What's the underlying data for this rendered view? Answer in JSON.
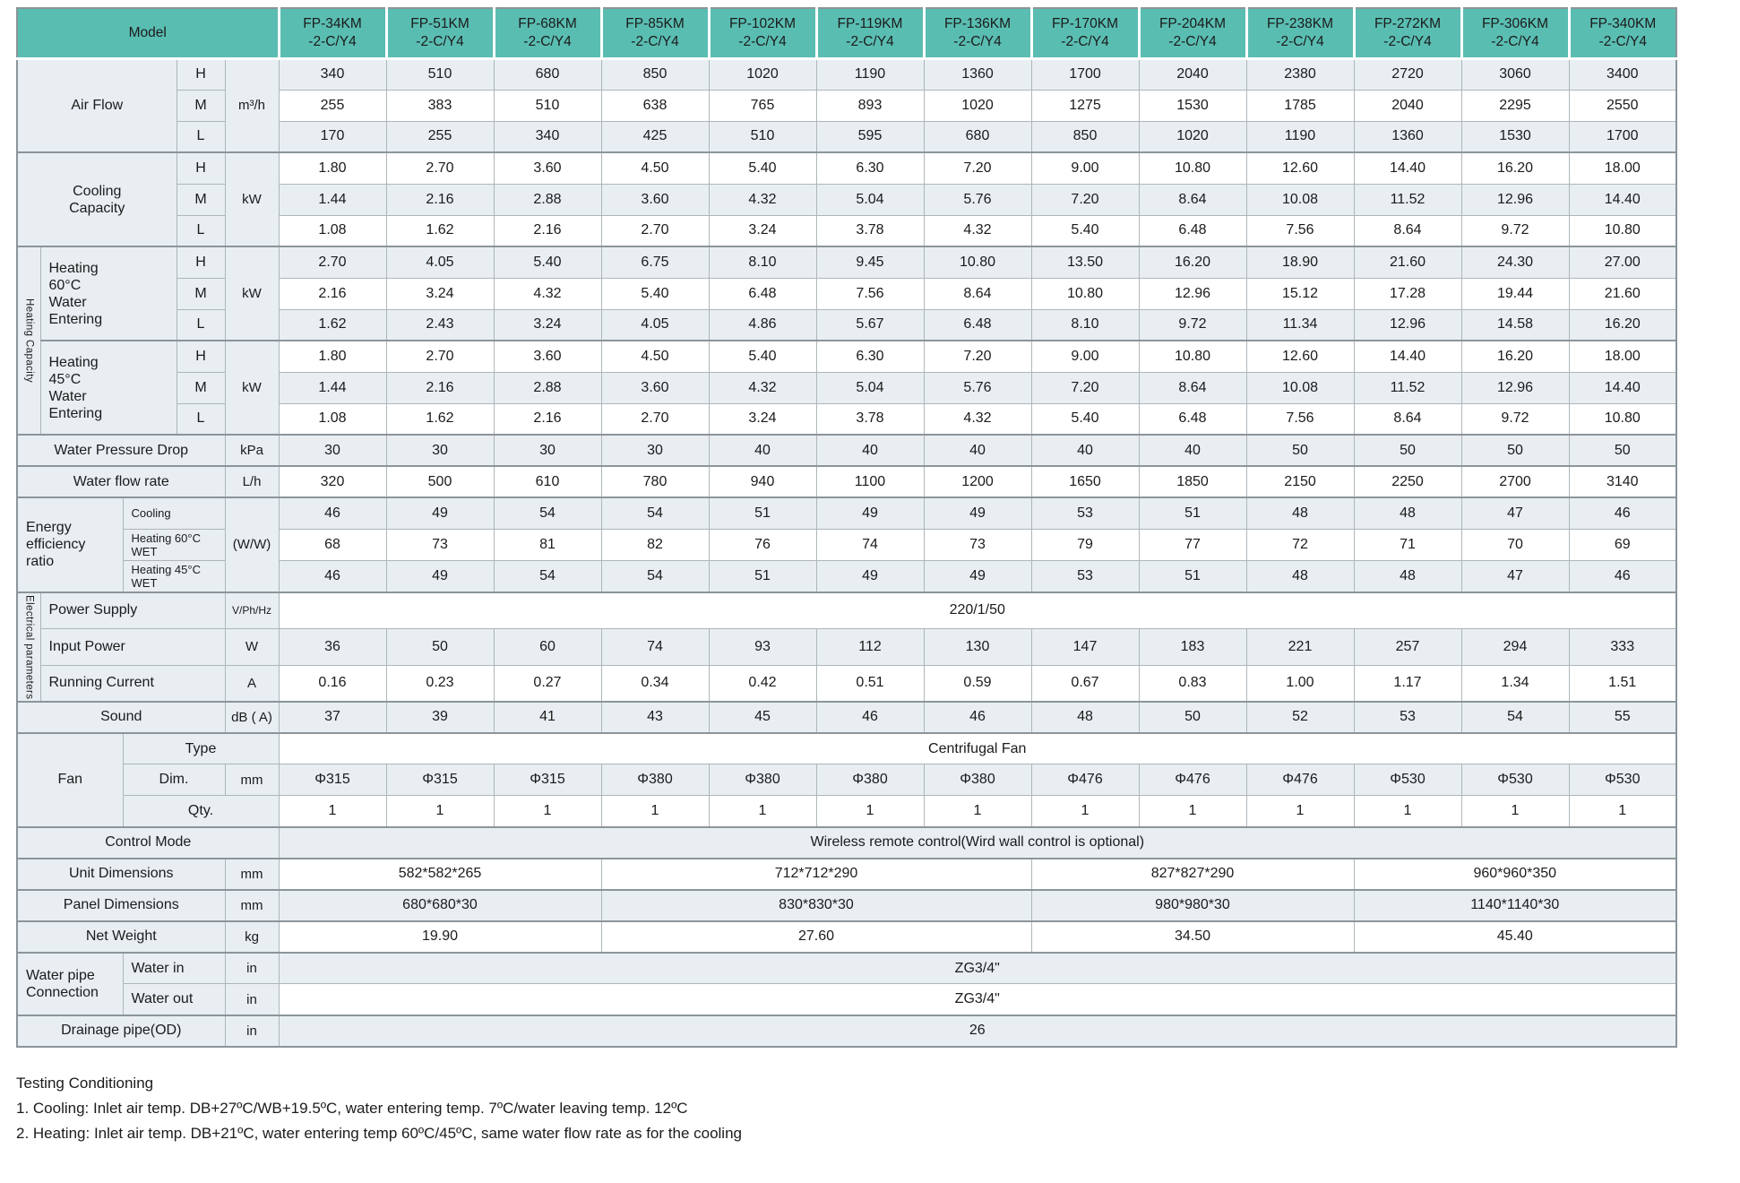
{
  "meta": {
    "title": "Fan coil unit specification table"
  },
  "colors": {
    "header_teal": "#5abdb2",
    "row_light": "#e8eef2",
    "row_white": "#ffffff",
    "border": "#aeb6ba",
    "border_dark": "#8b959a",
    "text": "#1b1b1b"
  },
  "header": {
    "model_label": "Model",
    "models": [
      {
        "l1": "FP-34KM",
        "l2": "-2-C/Y4"
      },
      {
        "l1": "FP-51KM",
        "l2": "-2-C/Y4"
      },
      {
        "l1": "FP-68KM",
        "l2": "-2-C/Y4"
      },
      {
        "l1": "FP-85KM",
        "l2": "-2-C/Y4"
      },
      {
        "l1": "FP-102KM",
        "l2": "-2-C/Y4"
      },
      {
        "l1": "FP-119KM",
        "l2": "-2-C/Y4"
      },
      {
        "l1": "FP-136KM",
        "l2": "-2-C/Y4"
      },
      {
        "l1": "FP-170KM",
        "l2": "-2-C/Y4"
      },
      {
        "l1": "FP-204KM",
        "l2": "-2-C/Y4"
      },
      {
        "l1": "FP-238KM",
        "l2": "-2-C/Y4"
      },
      {
        "l1": "FP-272KM",
        "l2": "-2-C/Y4"
      },
      {
        "l1": "FP-306KM",
        "l2": "-2-C/Y4"
      },
      {
        "l1": "FP-340KM",
        "l2": "-2-C/Y4"
      }
    ]
  },
  "rows": [
    {
      "n": "air-flow-h",
      "shade": "lt",
      "sec": true,
      "labels": [
        {
          "t": "Air Flow",
          "cs": 3,
          "rs": 3,
          "cls": "lab"
        },
        {
          "t": "H",
          "cls": "hml"
        },
        {
          "t": "m³/h",
          "rs": 3,
          "cls": "unit"
        }
      ],
      "values": [
        "340",
        "510",
        "680",
        "850",
        "1020",
        "1190",
        "1360",
        "1700",
        "2040",
        "2380",
        "2720",
        "3060",
        "3400"
      ]
    },
    {
      "n": "air-flow-m",
      "shade": "wh",
      "labels": [
        {
          "t": "M",
          "cls": "hml"
        }
      ],
      "values": [
        "255",
        "383",
        "510",
        "638",
        "765",
        "893",
        "1020",
        "1275",
        "1530",
        "1785",
        "2040",
        "2295",
        "2550"
      ]
    },
    {
      "n": "air-flow-l",
      "shade": "lt",
      "labels": [
        {
          "t": "L",
          "cls": "hml"
        }
      ],
      "values": [
        "170",
        "255",
        "340",
        "425",
        "510",
        "595",
        "680",
        "850",
        "1020",
        "1190",
        "1360",
        "1530",
        "1700"
      ]
    },
    {
      "n": "cooling-capacity-h",
      "shade": "wh",
      "sec": true,
      "labels": [
        {
          "t": "Cooling\nCapacity",
          "cs": 3,
          "rs": 3,
          "cls": "lab pre"
        },
        {
          "t": "H",
          "cls": "hml"
        },
        {
          "t": "kW",
          "rs": 3,
          "cls": "unit"
        }
      ],
      "values": [
        "1.80",
        "2.70",
        "3.60",
        "4.50",
        "5.40",
        "6.30",
        "7.20",
        "9.00",
        "10.80",
        "12.60",
        "14.40",
        "16.20",
        "18.00"
      ]
    },
    {
      "n": "cooling-capacity-m",
      "shade": "lt",
      "labels": [
        {
          "t": "M",
          "cls": "hml"
        }
      ],
      "values": [
        "1.44",
        "2.16",
        "2.88",
        "3.60",
        "4.32",
        "5.04",
        "5.76",
        "7.20",
        "8.64",
        "10.08",
        "11.52",
        "12.96",
        "14.40"
      ]
    },
    {
      "n": "cooling-capacity-l",
      "shade": "wh",
      "labels": [
        {
          "t": "L",
          "cls": "hml"
        }
      ],
      "values": [
        "1.08",
        "1.62",
        "2.16",
        "2.70",
        "3.24",
        "3.78",
        "4.32",
        "5.40",
        "6.48",
        "7.56",
        "8.64",
        "9.72",
        "10.80"
      ]
    },
    {
      "n": "heating-60-h",
      "shade": "lt",
      "sec": true,
      "labels": [
        {
          "t": "Heating Capacity",
          "rs": 6,
          "cls": "vert"
        },
        {
          "t": "Heating\n60°C\nWater\nEntering",
          "cs": 2,
          "rs": 3,
          "cls": "lab left pre"
        },
        {
          "t": "H",
          "cls": "hml"
        },
        {
          "t": "kW",
          "rs": 3,
          "cls": "unit"
        }
      ],
      "values": [
        "2.70",
        "4.05",
        "5.40",
        "6.75",
        "8.10",
        "9.45",
        "10.80",
        "13.50",
        "16.20",
        "18.90",
        "21.60",
        "24.30",
        "27.00"
      ]
    },
    {
      "n": "heating-60-m",
      "shade": "wh",
      "labels": [
        {
          "t": "M",
          "cls": "hml"
        }
      ],
      "values": [
        "2.16",
        "3.24",
        "4.32",
        "5.40",
        "6.48",
        "7.56",
        "8.64",
        "10.80",
        "12.96",
        "15.12",
        "17.28",
        "19.44",
        "21.60"
      ]
    },
    {
      "n": "heating-60-l",
      "shade": "lt",
      "labels": [
        {
          "t": "L",
          "cls": "hml"
        }
      ],
      "values": [
        "1.62",
        "2.43",
        "3.24",
        "4.05",
        "4.86",
        "5.67",
        "6.48",
        "8.10",
        "9.72",
        "11.34",
        "12.96",
        "14.58",
        "16.20"
      ]
    },
    {
      "n": "heating-45-h",
      "shade": "wh",
      "sec": true,
      "labels": [
        {
          "t": "Heating\n45°C\nWater\nEntering",
          "cs": 2,
          "rs": 3,
          "cls": "lab left pre"
        },
        {
          "t": "H",
          "cls": "hml"
        },
        {
          "t": "kW",
          "rs": 3,
          "cls": "unit"
        }
      ],
      "values": [
        "1.80",
        "2.70",
        "3.60",
        "4.50",
        "5.40",
        "6.30",
        "7.20",
        "9.00",
        "10.80",
        "12.60",
        "14.40",
        "16.20",
        "18.00"
      ]
    },
    {
      "n": "heating-45-m",
      "shade": "lt",
      "labels": [
        {
          "t": "M",
          "cls": "hml"
        }
      ],
      "values": [
        "1.44",
        "2.16",
        "2.88",
        "3.60",
        "4.32",
        "5.04",
        "5.76",
        "7.20",
        "8.64",
        "10.08",
        "11.52",
        "12.96",
        "14.40"
      ]
    },
    {
      "n": "heating-45-l",
      "shade": "wh",
      "labels": [
        {
          "t": "L",
          "cls": "hml"
        }
      ],
      "values": [
        "1.08",
        "1.62",
        "2.16",
        "2.70",
        "3.24",
        "3.78",
        "4.32",
        "5.40",
        "6.48",
        "7.56",
        "8.64",
        "9.72",
        "10.80"
      ]
    },
    {
      "n": "water-pressure-drop",
      "shade": "lt",
      "sec": true,
      "labels": [
        {
          "t": "Water Pressure Drop",
          "cs": 4,
          "cls": "lab"
        },
        {
          "t": "kPa",
          "cls": "unit"
        }
      ],
      "values": [
        "30",
        "30",
        "30",
        "30",
        "40",
        "40",
        "40",
        "40",
        "40",
        "50",
        "50",
        "50",
        "50"
      ]
    },
    {
      "n": "water-flow-rate",
      "shade": "wh",
      "sec": true,
      "labels": [
        {
          "t": "Water flow rate",
          "cs": 4,
          "cls": "lab"
        },
        {
          "t": "L/h",
          "cls": "unit"
        }
      ],
      "values": [
        "320",
        "500",
        "610",
        "780",
        "940",
        "1100",
        "1200",
        "1650",
        "1850",
        "2150",
        "2250",
        "2700",
        "3140"
      ]
    },
    {
      "n": "eer-cooling",
      "shade": "lt",
      "sec": true,
      "labels": [
        {
          "t": "Energy\nefficiency\nratio",
          "cs": 2,
          "rs": 3,
          "cls": "lab left pre"
        },
        {
          "t": "Cooling",
          "cs": 2,
          "cls": "lab left small"
        },
        {
          "t": "(W/W)",
          "rs": 3,
          "cls": "unit"
        }
      ],
      "values": [
        "46",
        "49",
        "54",
        "54",
        "51",
        "49",
        "49",
        "53",
        "51",
        "48",
        "48",
        "47",
        "46"
      ]
    },
    {
      "n": "eer-heating-60",
      "shade": "wh",
      "labels": [
        {
          "t": "Heating 60°C WET",
          "cs": 2,
          "cls": "lab left small"
        }
      ],
      "values": [
        "68",
        "73",
        "81",
        "82",
        "76",
        "74",
        "73",
        "79",
        "77",
        "72",
        "71",
        "70",
        "69"
      ]
    },
    {
      "n": "eer-heating-45",
      "shade": "lt",
      "labels": [
        {
          "t": "Heating 45°C WET",
          "cs": 2,
          "cls": "lab left small"
        }
      ],
      "values": [
        "46",
        "49",
        "54",
        "54",
        "51",
        "49",
        "49",
        "53",
        "51",
        "48",
        "48",
        "47",
        "46"
      ]
    },
    {
      "n": "power-supply",
      "shade": "wh",
      "sec": true,
      "labels": [
        {
          "t": "Electrical parameters",
          "rs": 3,
          "cls": "vert"
        },
        {
          "t": "Power Supply",
          "cs": 3,
          "cls": "lab left"
        },
        {
          "t": "V/Ph/Hz",
          "cls": "unit small"
        }
      ],
      "span": "220/1/50"
    },
    {
      "n": "input-power",
      "shade": "lt",
      "labels": [
        {
          "t": "Input Power",
          "cs": 3,
          "cls": "lab left"
        },
        {
          "t": "W",
          "cls": "unit"
        }
      ],
      "values": [
        "36",
        "50",
        "60",
        "74",
        "93",
        "112",
        "130",
        "147",
        "183",
        "221",
        "257",
        "294",
        "333"
      ]
    },
    {
      "n": "running-current",
      "shade": "wh",
      "labels": [
        {
          "t": "Running Current",
          "cs": 3,
          "cls": "lab left"
        },
        {
          "t": "A",
          "cls": "unit"
        }
      ],
      "values": [
        "0.16",
        "0.23",
        "0.27",
        "0.34",
        "0.42",
        "0.51",
        "0.59",
        "0.67",
        "0.83",
        "1.00",
        "1.17",
        "1.34",
        "1.51"
      ]
    },
    {
      "n": "sound",
      "shade": "lt",
      "sec": true,
      "labels": [
        {
          "t": "Sound",
          "cs": 4,
          "cls": "lab"
        },
        {
          "t": "dB ( A)",
          "cls": "unit"
        }
      ],
      "values": [
        "37",
        "39",
        "41",
        "43",
        "45",
        "46",
        "46",
        "48",
        "50",
        "52",
        "53",
        "54",
        "55"
      ]
    },
    {
      "n": "fan-type",
      "shade": "wh",
      "sec": true,
      "labels": [
        {
          "t": "Fan",
          "cs": 2,
          "rs": 3,
          "cls": "lab"
        },
        {
          "t": "Type",
          "cs": 3,
          "cls": "lab"
        }
      ],
      "span": "Centrifugal Fan"
    },
    {
      "n": "fan-dim",
      "shade": "lt",
      "labels": [
        {
          "t": "Dim.",
          "cs": 2,
          "cls": "lab"
        },
        {
          "t": "mm",
          "cls": "unit"
        }
      ],
      "values": [
        "Φ315",
        "Φ315",
        "Φ315",
        "Φ380",
        "Φ380",
        "Φ380",
        "Φ380",
        "Φ476",
        "Φ476",
        "Φ476",
        "Φ530",
        "Φ530",
        "Φ530"
      ]
    },
    {
      "n": "fan-qty",
      "shade": "wh",
      "labels": [
        {
          "t": "Qty.",
          "cs": 3,
          "cls": "lab"
        }
      ],
      "values": [
        "1",
        "1",
        "1",
        "1",
        "1",
        "1",
        "1",
        "1",
        "1",
        "1",
        "1",
        "1",
        "1"
      ]
    },
    {
      "n": "control-mode",
      "shade": "lt",
      "sec": true,
      "labels": [
        {
          "t": "Control Mode",
          "cs": 5,
          "cls": "lab"
        }
      ],
      "span": "Wireless remote control(Wird wall control is optional)"
    },
    {
      "n": "unit-dimensions",
      "shade": "wh",
      "sec": true,
      "labels": [
        {
          "t": "Unit Dimensions",
          "cs": 4,
          "cls": "lab"
        },
        {
          "t": "mm",
          "cls": "unit"
        }
      ],
      "groups": [
        {
          "t": "582*582*265",
          "s": 3
        },
        {
          "t": "712*712*290",
          "s": 4
        },
        {
          "t": "827*827*290",
          "s": 3
        },
        {
          "t": "960*960*350",
          "s": 3
        }
      ]
    },
    {
      "n": "panel-dimensions",
      "shade": "lt",
      "sec": true,
      "labels": [
        {
          "t": "Panel Dimensions",
          "cs": 4,
          "cls": "lab"
        },
        {
          "t": "mm",
          "cls": "unit"
        }
      ],
      "groups": [
        {
          "t": "680*680*30",
          "s": 3
        },
        {
          "t": "830*830*30",
          "s": 4
        },
        {
          "t": "980*980*30",
          "s": 3
        },
        {
          "t": "1140*1140*30",
          "s": 3
        }
      ]
    },
    {
      "n": "net-weight",
      "shade": "wh",
      "sec": true,
      "labels": [
        {
          "t": "Net Weight",
          "cs": 4,
          "cls": "lab"
        },
        {
          "t": "kg",
          "cls": "unit"
        }
      ],
      "groups": [
        {
          "t": "19.90",
          "s": 3
        },
        {
          "t": "27.60",
          "s": 4
        },
        {
          "t": "34.50",
          "s": 3
        },
        {
          "t": "45.40",
          "s": 3
        }
      ]
    },
    {
      "n": "water-in",
      "shade": "lt",
      "sec": true,
      "labels": [
        {
          "t": "Water pipe\nConnection",
          "cs": 2,
          "rs": 2,
          "cls": "lab left pre"
        },
        {
          "t": "Water in",
          "cs": 2,
          "cls": "lab left"
        },
        {
          "t": "in",
          "cls": "unit"
        }
      ],
      "span": "ZG3/4\""
    },
    {
      "n": "water-out",
      "shade": "wh",
      "labels": [
        {
          "t": "Water out",
          "cs": 2,
          "cls": "lab left"
        },
        {
          "t": "in",
          "cls": "unit"
        }
      ],
      "span": "ZG3/4\""
    },
    {
      "n": "drainage-pipe",
      "shade": "lt",
      "sec": true,
      "labels": [
        {
          "t": "Drainage pipe(OD)",
          "cs": 4,
          "cls": "lab"
        },
        {
          "t": "in",
          "cls": "unit"
        }
      ],
      "span": "26"
    }
  ],
  "notes": {
    "title": "Testing Conditioning",
    "items": [
      "1. Cooling: Inlet air temp. DB+27ºC/WB+19.5ºC, water entering temp. 7ºC/water leaving temp. 12ºC",
      "2. Heating: Inlet air temp. DB+21ºC, water entering temp 60ºC/45ºC, same water flow rate as for the cooling"
    ]
  }
}
